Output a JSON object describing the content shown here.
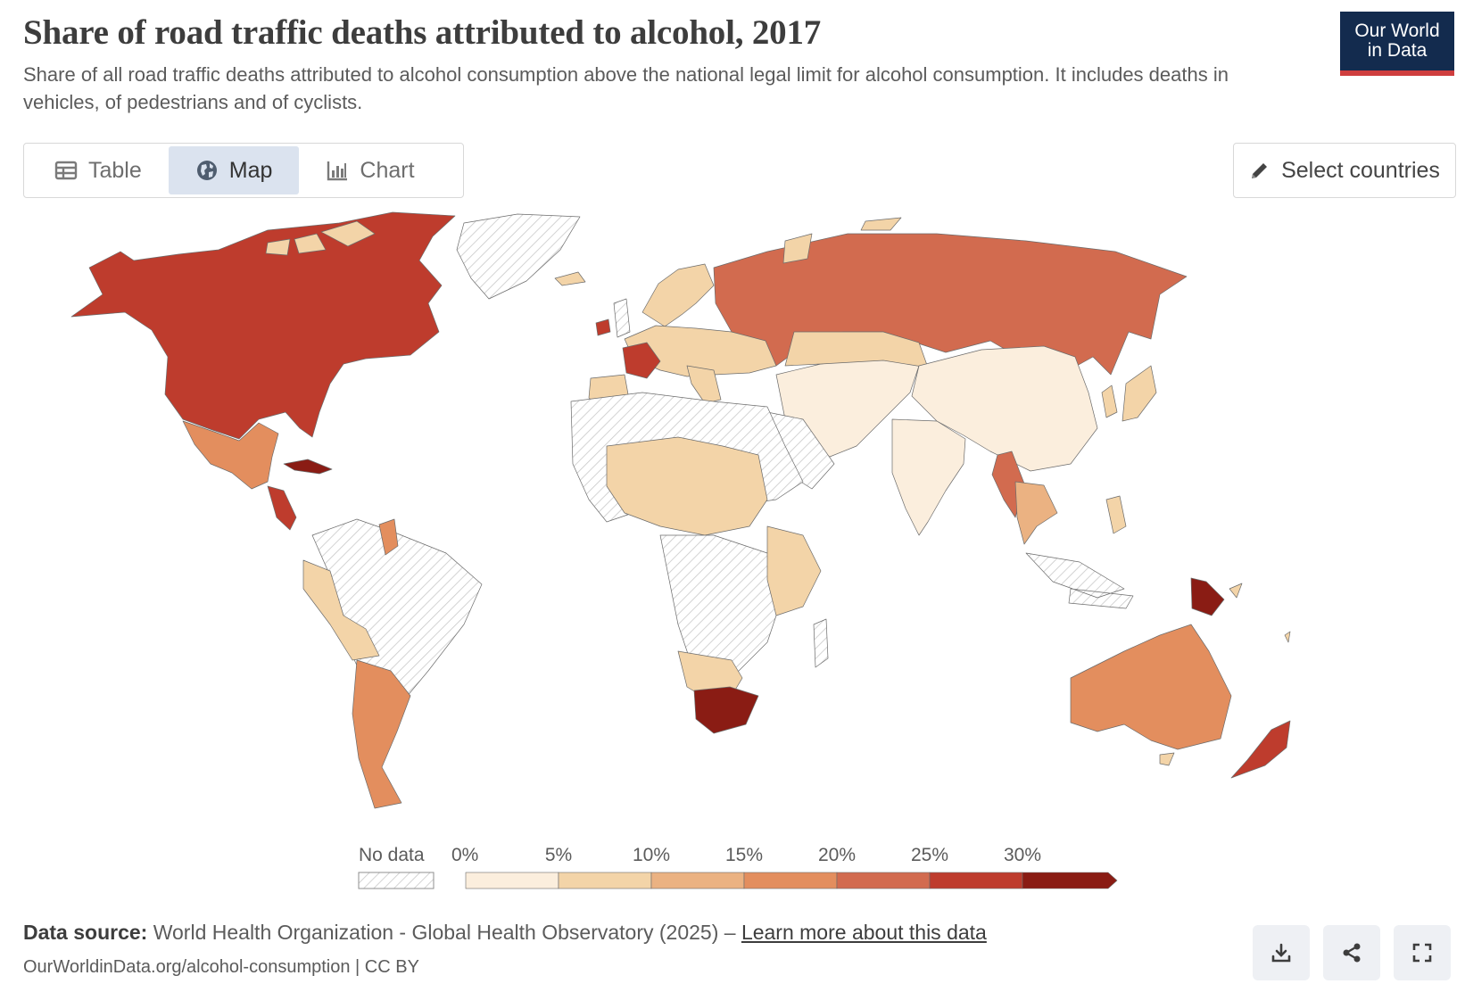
{
  "header": {
    "title": "Share of road traffic deaths attributed to alcohol, 2017",
    "subtitle": "Share of all road traffic deaths attributed to alcohol consumption above the national legal limit for alcohol consumption. It includes deaths in vehicles, of pedestrians and of cyclists.",
    "logo_line1": "Our World",
    "logo_line2": "in Data"
  },
  "tabs": [
    {
      "label": "Table",
      "icon": "table-icon"
    },
    {
      "label": "Map",
      "icon": "globe-icon",
      "active": true
    },
    {
      "label": "Chart",
      "icon": "chart-icon"
    }
  ],
  "select_countries": {
    "label": "Select countries",
    "icon": "pencil-icon"
  },
  "legend": {
    "no_data_label": "No data",
    "bins": [
      {
        "label": "0%",
        "color": "#fbeedd"
      },
      {
        "label": "5%",
        "color": "#f3d4a8"
      },
      {
        "label": "10%",
        "color": "#ebb282"
      },
      {
        "label": "15%",
        "color": "#e38e5e"
      },
      {
        "label": "20%",
        "color": "#d26b4f"
      },
      {
        "label": "25%",
        "color": "#be3c2d"
      },
      {
        "label": "30%",
        "color": "#8a1c14"
      }
    ]
  },
  "map_regions": [
    {
      "name": "north-america",
      "color": "#be3c2d"
    },
    {
      "name": "greenland",
      "color": "nodata"
    },
    {
      "name": "mexico",
      "color": "#e38e5e"
    },
    {
      "name": "cuba",
      "color": "#8a1c14"
    },
    {
      "name": "central-america",
      "color": "#be3c2d"
    },
    {
      "name": "guyana",
      "color": "#e38e5e"
    },
    {
      "name": "south-america-west",
      "color": "#f3d4a8"
    },
    {
      "name": "brazil",
      "color": "nodata"
    },
    {
      "name": "argentina",
      "color": "#e38e5e"
    },
    {
      "name": "europe",
      "color": "#f3d4a8"
    },
    {
      "name": "france",
      "color": "#be3c2d"
    },
    {
      "name": "ireland",
      "color": "#be3c2d"
    },
    {
      "name": "russia",
      "color": "#d26b4f"
    },
    {
      "name": "middle-east",
      "color": "#fbeedd"
    },
    {
      "name": "north-africa",
      "color": "nodata"
    },
    {
      "name": "sub-saharan-africa",
      "color": "#fbeedd"
    },
    {
      "name": "south-africa",
      "color": "#8a1c14"
    },
    {
      "name": "china",
      "color": "#fbeedd"
    },
    {
      "name": "india",
      "color": "#fbeedd"
    },
    {
      "name": "myanmar",
      "color": "#d26b4f"
    },
    {
      "name": "southeast-asia",
      "color": "#ebb282"
    },
    {
      "name": "japan",
      "color": "#f3d4a8"
    },
    {
      "name": "indonesia",
      "color": "nodata"
    },
    {
      "name": "papua-new-guinea",
      "color": "#8a1c14"
    },
    {
      "name": "australia",
      "color": "#e38e5e"
    },
    {
      "name": "new-zealand",
      "color": "#be3c2d"
    }
  ],
  "footer": {
    "source_label": "Data source:",
    "source_text": "World Health Organization - Global Health Observatory (2025) – ",
    "learn_more": "Learn more about this data",
    "url": "OurWorldinData.org/alcohol-consumption | CC BY"
  },
  "actions": [
    {
      "name": "download",
      "icon": "download-icon"
    },
    {
      "name": "share",
      "icon": "share-icon"
    },
    {
      "name": "fullscreen",
      "icon": "fullscreen-icon"
    }
  ]
}
